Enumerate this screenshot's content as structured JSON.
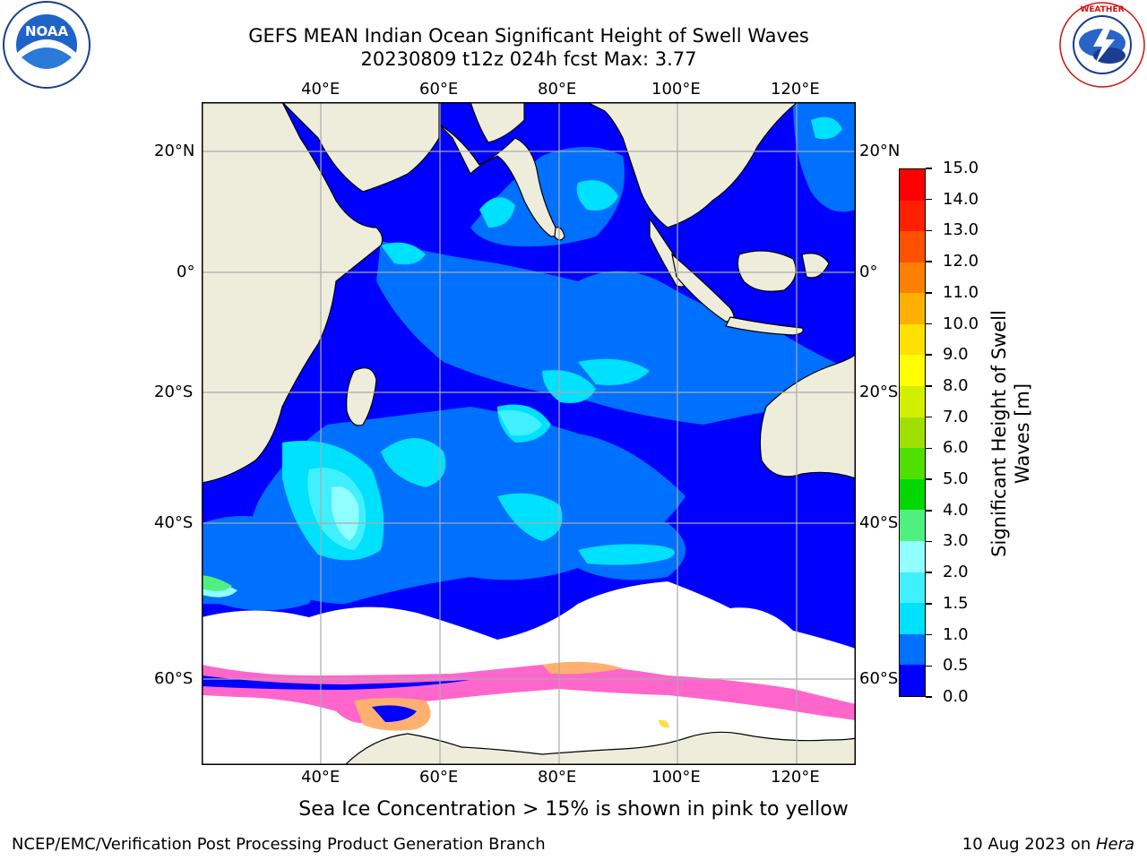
{
  "title": {
    "line1": "GEFS MEAN Indian Ocean Significant Height of Swell Waves",
    "line2": "20230809 t12z 024h fcst   Max: 3.77"
  },
  "map": {
    "lon_range": [
      20,
      130
    ],
    "lat_range": [
      -71,
      28
    ],
    "lon_ticks": [
      "40°E",
      "60°E",
      "80°E",
      "100°E",
      "120°E"
    ],
    "lat_ticks": [
      "20°N",
      "0°",
      "20°S",
      "40°S",
      "60°S"
    ],
    "land_color": "#eeeddc",
    "ice_colors": [
      "#ff66cc",
      "#ffb070",
      "#ffdd44"
    ]
  },
  "colorbar": {
    "label": "Significant Height of Swell Waves [m]",
    "tick_labels": [
      "0.0",
      "0.5",
      "1.0",
      "1.5",
      "2.0",
      "3.0",
      "4.0",
      "5.0",
      "6.0",
      "7.0",
      "8.0",
      "9.0",
      "10.0",
      "11.0",
      "12.0",
      "13.0",
      "14.0",
      "15.0"
    ],
    "colors": [
      "#0000ff",
      "#0070ff",
      "#00e0ff",
      "#40f0ff",
      "#90ffff",
      "#50f080",
      "#00d800",
      "#50e000",
      "#a0e000",
      "#d0f000",
      "#ffff00",
      "#ffe000",
      "#ffb000",
      "#ff8000",
      "#ff5000",
      "#ff2000",
      "#ff0000"
    ]
  },
  "caption": "Sea Ice Concentration > 15% is shown in pink to yellow",
  "footer": {
    "left": "NCEP/EMC/Verification Post Processing Product Generation Branch",
    "right_prefix": "10 Aug 2023 on ",
    "right_host": "Hera"
  },
  "logos": {
    "noaa_text": "NOAA",
    "noaa_ring": "NATIONAL OCEANIC AND ATMOSPHERIC ADMINISTRATION · U.S. DEPARTMENT OF COMMERCE",
    "nws_ring": "NATIONAL WEATHER SERVICE"
  }
}
